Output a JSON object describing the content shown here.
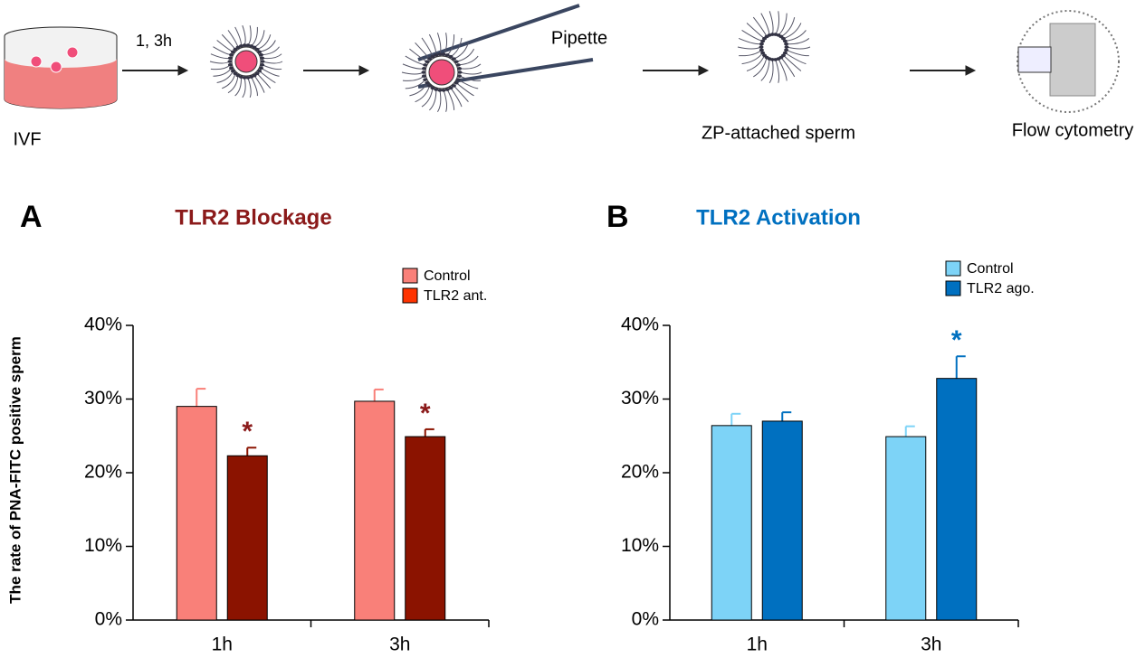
{
  "diagram": {
    "labels": [
      "IVF",
      "1, 3h",
      "Pipette",
      "ZP-attached sperm",
      "Flow cytometry"
    ]
  },
  "chart_data": [
    {
      "type": "bar",
      "panel": "A",
      "title": "TLR2 Blockage",
      "title_color": "#8b1a1a",
      "ylabel": "The rate of PNA-FITC positive sperm",
      "categories": [
        "1h",
        "3h"
      ],
      "series": [
        {
          "name": "Control",
          "color": "#f98079",
          "values": [
            29.0,
            29.7
          ],
          "errors": [
            2.4,
            1.6
          ]
        },
        {
          "name": "TLR2 ant.",
          "color": "#8b1300",
          "legend_color": "#ff3300",
          "values": [
            22.3,
            24.9
          ],
          "errors": [
            1.1,
            1.0
          ]
        }
      ],
      "annotations": [
        {
          "text": "*",
          "series": 1,
          "category": 0,
          "color": "#8b1a1a"
        },
        {
          "text": "*",
          "series": 1,
          "category": 1,
          "color": "#8b1a1a"
        }
      ],
      "ylim": [
        0,
        40
      ],
      "yticks": [
        {
          "value": 0,
          "label": "0%"
        },
        {
          "value": 10,
          "label": "10%"
        },
        {
          "value": 20,
          "label": "20%"
        },
        {
          "value": 30,
          "label": "30%"
        },
        {
          "value": 40,
          "label": "40%"
        }
      ]
    },
    {
      "type": "bar",
      "panel": "B",
      "title": "TLR2 Activation",
      "title_color": "#0070c0",
      "categories": [
        "1h",
        "3h"
      ],
      "series": [
        {
          "name": "Control",
          "color": "#7dd3f7",
          "values": [
            26.4,
            24.9
          ],
          "errors": [
            1.6,
            1.4
          ]
        },
        {
          "name": "TLR2 ago.",
          "color": "#0070c0",
          "values": [
            27.0,
            32.8
          ],
          "errors": [
            1.2,
            3.0
          ]
        }
      ],
      "annotations": [
        {
          "text": "*",
          "series": 1,
          "category": 1,
          "color": "#0070c0"
        }
      ],
      "ylim": [
        0,
        40
      ],
      "yticks": [
        {
          "value": 0,
          "label": "0%"
        },
        {
          "value": 10,
          "label": "10%"
        },
        {
          "value": 20,
          "label": "20%"
        },
        {
          "value": 30,
          "label": "30%"
        },
        {
          "value": 40,
          "label": "40%"
        }
      ]
    }
  ]
}
